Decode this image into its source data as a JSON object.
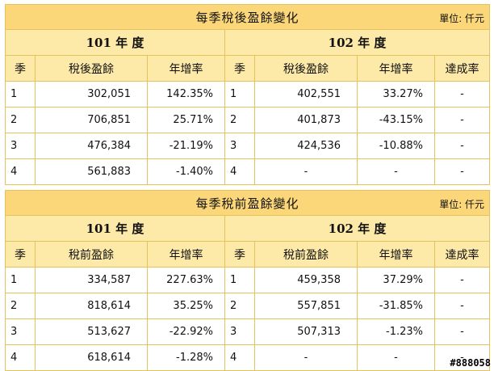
{
  "unit_label": "單位: 仟元",
  "header": {
    "season": "季",
    "growth": "年增率",
    "achievement": "達成率"
  },
  "tables": [
    {
      "title": "每季稅後盈餘變化",
      "value_label": "稅後盈餘",
      "year_a": "101 年 度",
      "year_b": "102 年 度",
      "rows": [
        {
          "q_a": "1",
          "val_a": "302,051",
          "gr_a": "142.35%",
          "q_b": "1",
          "val_b": "402,551",
          "gr_b": "33.27%",
          "ach": "-"
        },
        {
          "q_a": "2",
          "val_a": "706,851",
          "gr_a": "25.71%",
          "q_b": "2",
          "val_b": "401,873",
          "gr_b": "-43.15%",
          "ach": "-"
        },
        {
          "q_a": "3",
          "val_a": "476,384",
          "gr_a": "-21.19%",
          "q_b": "3",
          "val_b": "424,536",
          "gr_b": "-10.88%",
          "ach": "-"
        },
        {
          "q_a": "4",
          "val_a": "561,883",
          "gr_a": "-1.40%",
          "q_b": "4",
          "val_b": "-",
          "gr_b": "-",
          "ach": "-"
        }
      ]
    },
    {
      "title": "每季稅前盈餘變化",
      "value_label": "稅前盈餘",
      "year_a": "101 年 度",
      "year_b": "102 年 度",
      "rows": [
        {
          "q_a": "1",
          "val_a": "334,587",
          "gr_a": "227.63%",
          "q_b": "1",
          "val_b": "459,358",
          "gr_b": "37.29%",
          "ach": "-"
        },
        {
          "q_a": "2",
          "val_a": "818,614",
          "gr_a": "35.25%",
          "q_b": "2",
          "val_b": "557,851",
          "gr_b": "-31.85%",
          "ach": "-"
        },
        {
          "q_a": "3",
          "val_a": "513,627",
          "gr_a": "-22.92%",
          "q_b": "3",
          "val_b": "507,313",
          "gr_b": "-1.23%",
          "ach": "-"
        },
        {
          "q_a": "4",
          "val_a": "618,614",
          "gr_a": "-1.28%",
          "q_b": "4",
          "val_b": "-",
          "gr_b": "-",
          "ach": "-"
        }
      ]
    }
  ],
  "watermark": "#888058"
}
